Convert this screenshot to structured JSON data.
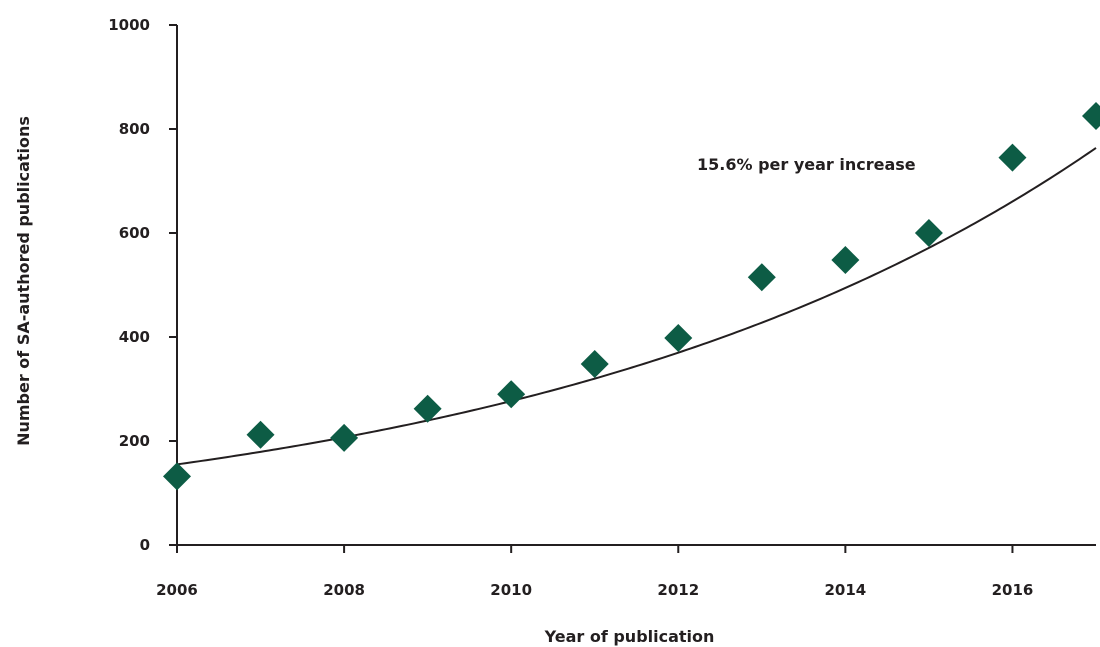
{
  "chart_data": {
    "type": "scatter",
    "xlabel": "Year of publication",
    "ylabel": "Number of SA-authored publications",
    "xlim": [
      2006,
      2017
    ],
    "ylim": [
      0,
      1000
    ],
    "x_ticks": [
      "2006",
      "2008",
      "2010",
      "2012",
      "2014",
      "2016"
    ],
    "y_ticks": [
      "0",
      "200",
      "400",
      "600",
      "800",
      "1000"
    ],
    "grid": false,
    "marker_color": "#0d5c45",
    "points": [
      {
        "x": 2006,
        "y": 132
      },
      {
        "x": 2007,
        "y": 212
      },
      {
        "x": 2008,
        "y": 206
      },
      {
        "x": 2009,
        "y": 262
      },
      {
        "x": 2010,
        "y": 290
      },
      {
        "x": 2011,
        "y": 348
      },
      {
        "x": 2012,
        "y": 398
      },
      {
        "x": 2013,
        "y": 515
      },
      {
        "x": 2014,
        "y": 548
      },
      {
        "x": 2015,
        "y": 600
      },
      {
        "x": 2016,
        "y": 745
      },
      {
        "x": 2017,
        "y": 825
      }
    ],
    "trendline": {
      "type": "exponential",
      "start": {
        "x": 2006,
        "y": 155
      },
      "growth_rate": 0.156,
      "label": "15.6% per year increase"
    }
  }
}
